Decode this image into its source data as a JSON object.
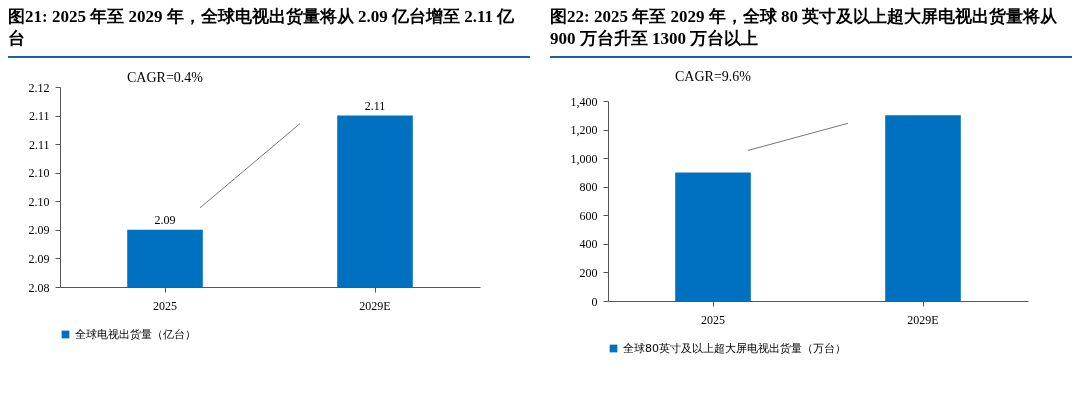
{
  "chart_data": [
    {
      "type": "bar",
      "title": "图21: 2025 年至 2029 年，全球电视出货量将从 2.09 亿台增至 2.11 亿台",
      "categories": [
        "2025",
        "2029E"
      ],
      "series": [
        {
          "name": "全球电视出货量（亿台）",
          "color": "#0070c0",
          "values": [
            2.09,
            2.11
          ]
        }
      ],
      "ylim": [
        2.08,
        2.115
      ],
      "yticks": [
        2.08,
        {
          "value": 2.085,
          "label": "2.09"
        },
        2.09,
        {
          "value": 2.095,
          "label": "2.10"
        },
        {
          "value": 2.1,
          "label": "2.10"
        },
        {
          "value": 2.105,
          "label": "2.11"
        },
        2.11,
        {
          "value": 2.115,
          "label": "2.12"
        }
      ],
      "data_labels": true,
      "legend": "bottom",
      "grid": false,
      "annotations": [
        "CAGR=0.4%"
      ]
    },
    {
      "type": "bar",
      "title": "图22: 2025 年至 2029 年，全球 80 英寸及以上超大屏电视出货量将从 900 万台升至 1300 万台以上",
      "categories": [
        "2025",
        "2029E"
      ],
      "series": [
        {
          "name": "全球80英寸及以上超大屏电视出货量（万台）",
          "color": "#0070c0",
          "values": [
            900,
            1300
          ]
        }
      ],
      "ylim": [
        0,
        1400
      ],
      "yticks": [
        {
          "value": 0,
          "label": "0"
        },
        {
          "value": 200,
          "label": "200"
        },
        {
          "value": 400,
          "label": "400"
        },
        {
          "value": 600,
          "label": "600"
        },
        {
          "value": 800,
          "label": "800"
        },
        {
          "value": 1000,
          "label": "1,000"
        },
        {
          "value": 1200,
          "label": "1,200"
        },
        {
          "value": 1400,
          "label": "1,400"
        }
      ],
      "legend": "bottom",
      "grid": false,
      "annotations": [
        "CAGR=9.6%"
      ]
    }
  ]
}
